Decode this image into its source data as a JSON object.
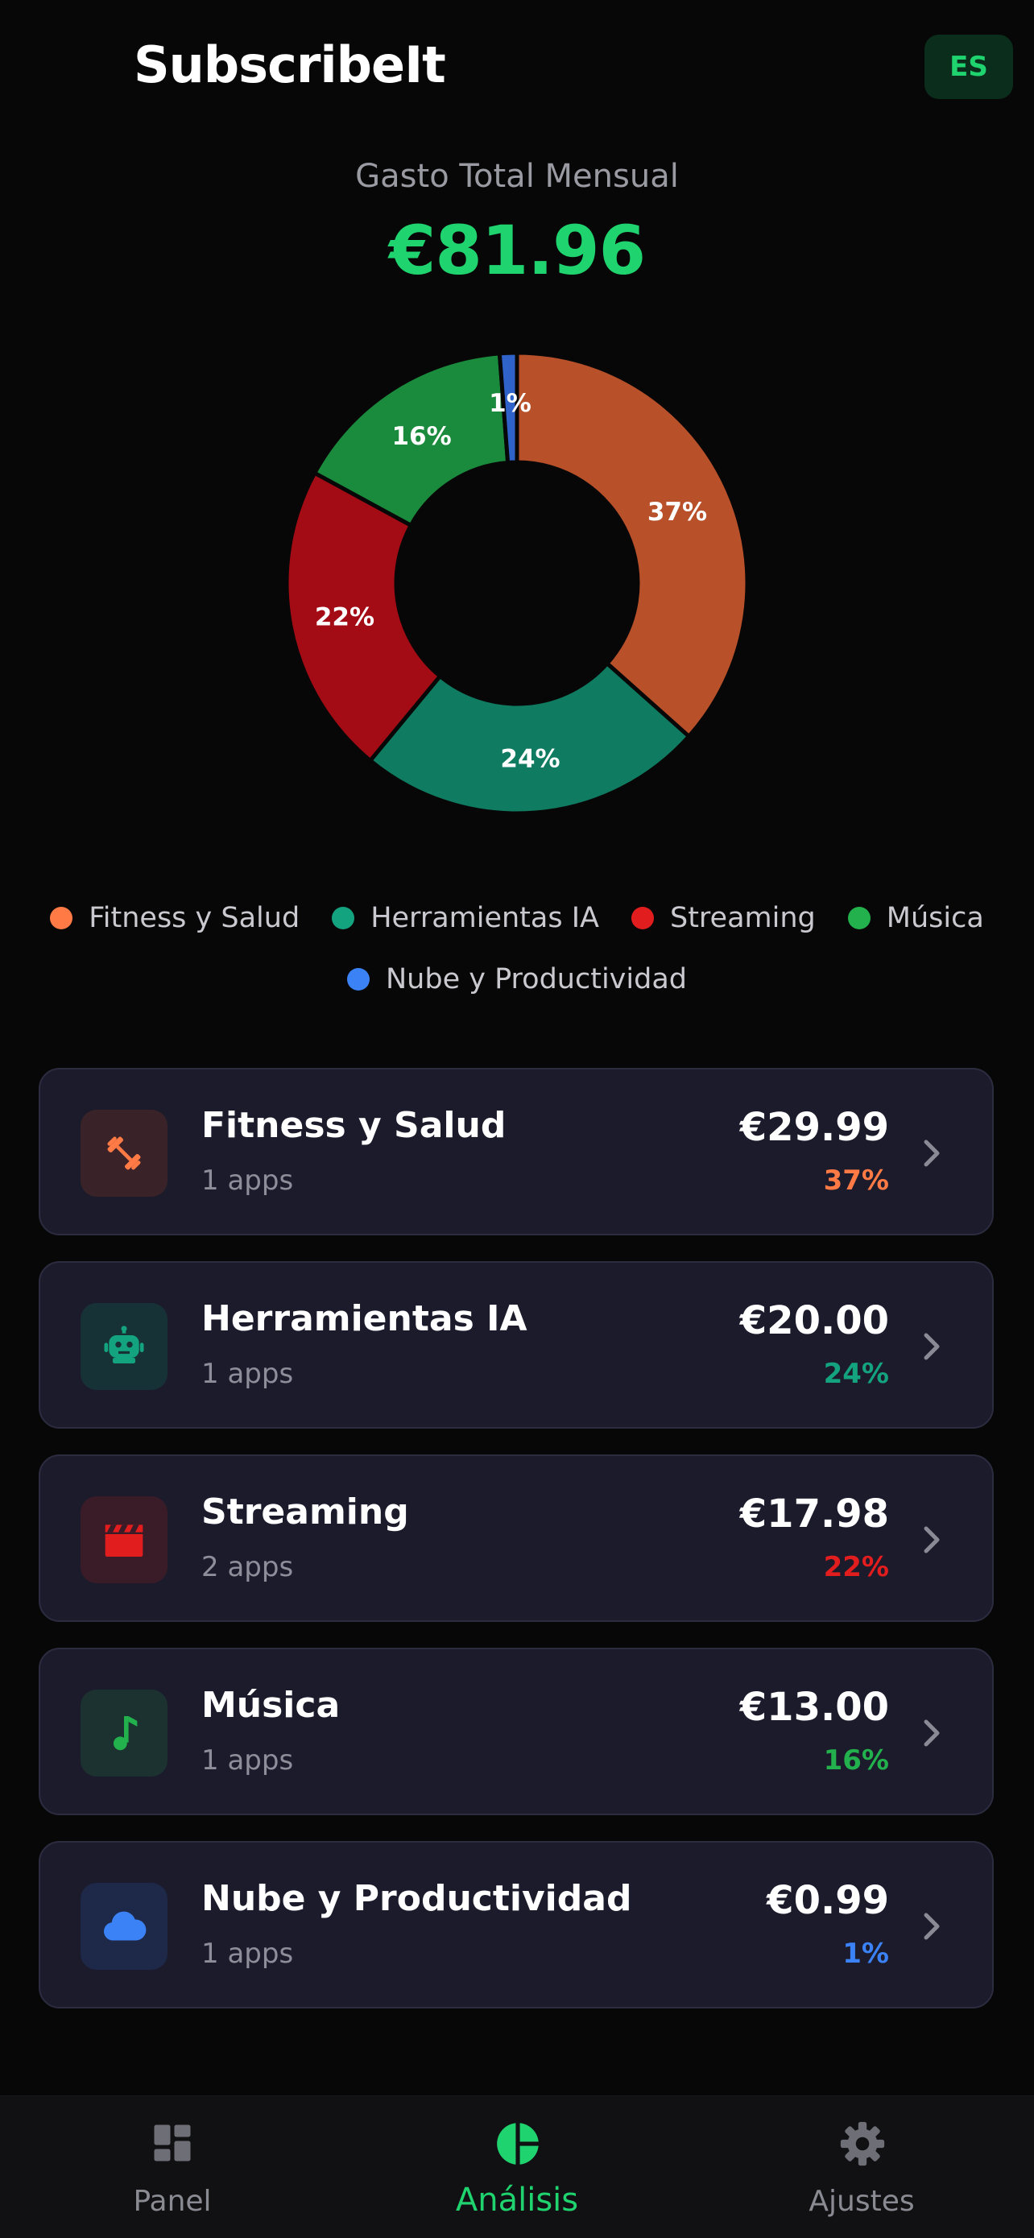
{
  "header": {
    "title": "SubscribeIt",
    "language_button": "ES"
  },
  "summary": {
    "label": "Gasto Total Mensual",
    "amount": "€81.96"
  },
  "chart_data": {
    "type": "pie",
    "categories": [
      "Fitness y Salud",
      "Herramientas IA",
      "Streaming",
      "Música",
      "Nube y Productividad"
    ],
    "values": [
      29.99,
      20.0,
      17.98,
      13.0,
      0.99
    ],
    "percent_labels": [
      "37%",
      "24%",
      "22%",
      "16%",
      "1%"
    ],
    "colors": [
      "#b8502a",
      "#0f7b61",
      "#a30b15",
      "#1a8a3c",
      "#2f63c9"
    ],
    "donut": true,
    "legend_placement": "bottom"
  },
  "legend": [
    {
      "label": "Fitness y Salud",
      "color": "#ff7a45"
    },
    {
      "label": "Herramientas IA",
      "color": "#14a37f"
    },
    {
      "label": "Streaming",
      "color": "#e11d1d"
    },
    {
      "label": "Música",
      "color": "#22b14c"
    },
    {
      "label": "Nube y Productividad",
      "color": "#3b82f6"
    }
  ],
  "categories": [
    {
      "name": "Fitness y Salud",
      "count": "1 apps",
      "amount": "€29.99",
      "percent": "37%",
      "color": "#ff7a45",
      "icon": "dumbbell-icon"
    },
    {
      "name": "Herramientas IA",
      "count": "1 apps",
      "amount": "€20.00",
      "percent": "24%",
      "color": "#14a37f",
      "icon": "robot-icon"
    },
    {
      "name": "Streaming",
      "count": "2 apps",
      "amount": "€17.98",
      "percent": "22%",
      "color": "#e11d1d",
      "icon": "clapperboard-icon"
    },
    {
      "name": "Música",
      "count": "1 apps",
      "amount": "€13.00",
      "percent": "16%",
      "color": "#22b14c",
      "icon": "music-note-icon"
    },
    {
      "name": "Nube y Productividad",
      "count": "1 apps",
      "amount": "€0.99",
      "percent": "1%",
      "color": "#3b82f6",
      "icon": "cloud-icon"
    }
  ],
  "tabs": [
    {
      "label": "Panel",
      "icon": "dashboard-icon",
      "active": false
    },
    {
      "label": "Análisis",
      "icon": "pie-chart-icon",
      "active": true
    },
    {
      "label": "Ajustes",
      "icon": "gear-icon",
      "active": false
    }
  ]
}
